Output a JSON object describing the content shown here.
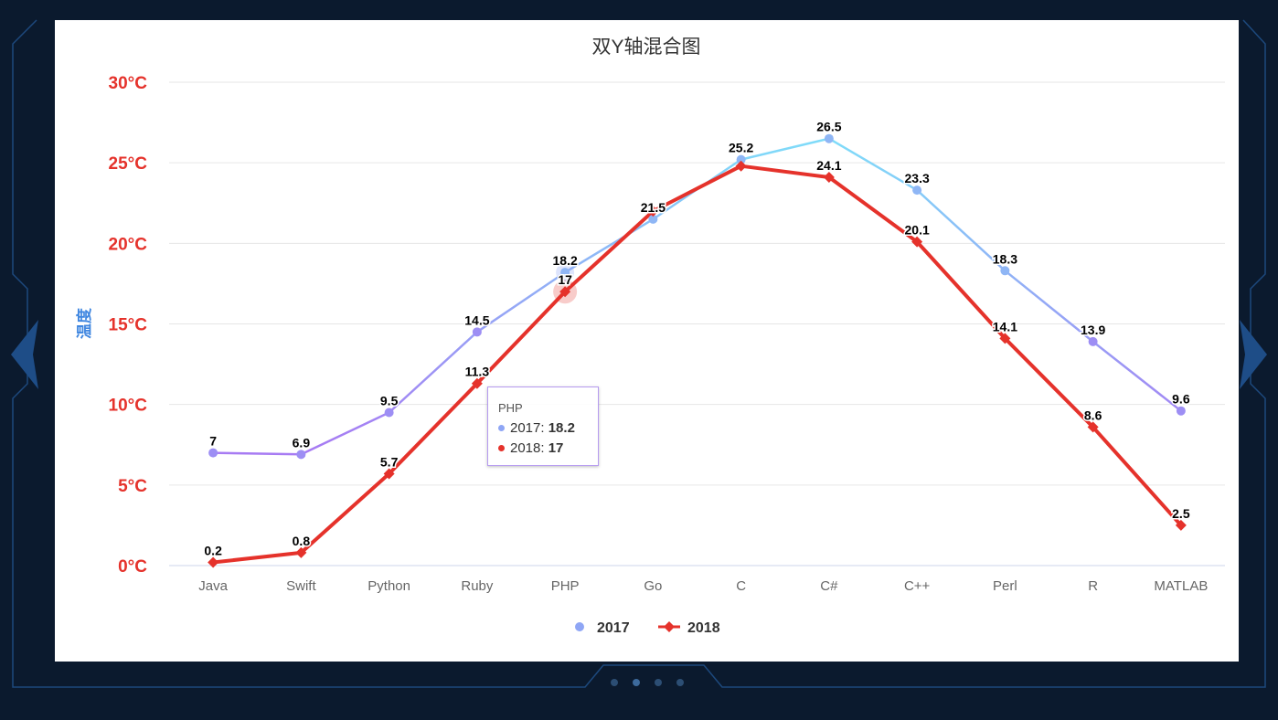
{
  "chart_data": {
    "type": "line",
    "title": "双Y轴混合图",
    "ylabel": "温度",
    "ylim": [
      0,
      30
    ],
    "yticks": [
      "0°C",
      "5°C",
      "10°C",
      "15°C",
      "20°C",
      "25°C",
      "30°C"
    ],
    "ytick_values": [
      0,
      5,
      10,
      15,
      20,
      25,
      30
    ],
    "categories": [
      "Java",
      "Swift",
      "Python",
      "Ruby",
      "PHP",
      "Go",
      "C",
      "C#",
      "C++",
      "Perl",
      "R",
      "MATLAB"
    ],
    "series": [
      {
        "name": "2017",
        "values": [
          7,
          6.9,
          9.5,
          14.5,
          18.2,
          21.5,
          25.2,
          26.5,
          23.3,
          18.3,
          13.9,
          9.6
        ],
        "color_start": "#a77bf3",
        "color_end": "#7fdcf9",
        "marker": "circle"
      },
      {
        "name": "2018",
        "values": [
          0.2,
          0.8,
          5.7,
          11.3,
          17,
          22,
          24.8,
          24.1,
          20.1,
          14.1,
          8.6,
          2.5
        ],
        "color": "#e5322b",
        "marker": "diamond"
      }
    ],
    "value_labels": {
      "2017": [
        "7",
        "6.9",
        "9.5",
        "14.5",
        "18.2",
        "21.5",
        "25.2",
        "26.5",
        "23.3",
        "18.3",
        "13.9",
        "9.6"
      ],
      "2018": [
        "0.2",
        "0.8",
        "5.7",
        "11.3",
        "17",
        "",
        "",
        "24.1",
        "20.1",
        "14.1",
        "8.6",
        "2.5"
      ]
    },
    "legend_position": "bottom-center",
    "grid": true
  },
  "tooltip": {
    "category": "PHP",
    "rows": [
      {
        "series": "2017",
        "value": "18.2",
        "color": "#8fa6f5"
      },
      {
        "series": "2018",
        "value": "17",
        "color": "#e5322b"
      }
    ]
  },
  "colors": {
    "axis_label": "#e5322b",
    "ylabel": "#3f86e0",
    "tick": "#666666"
  }
}
